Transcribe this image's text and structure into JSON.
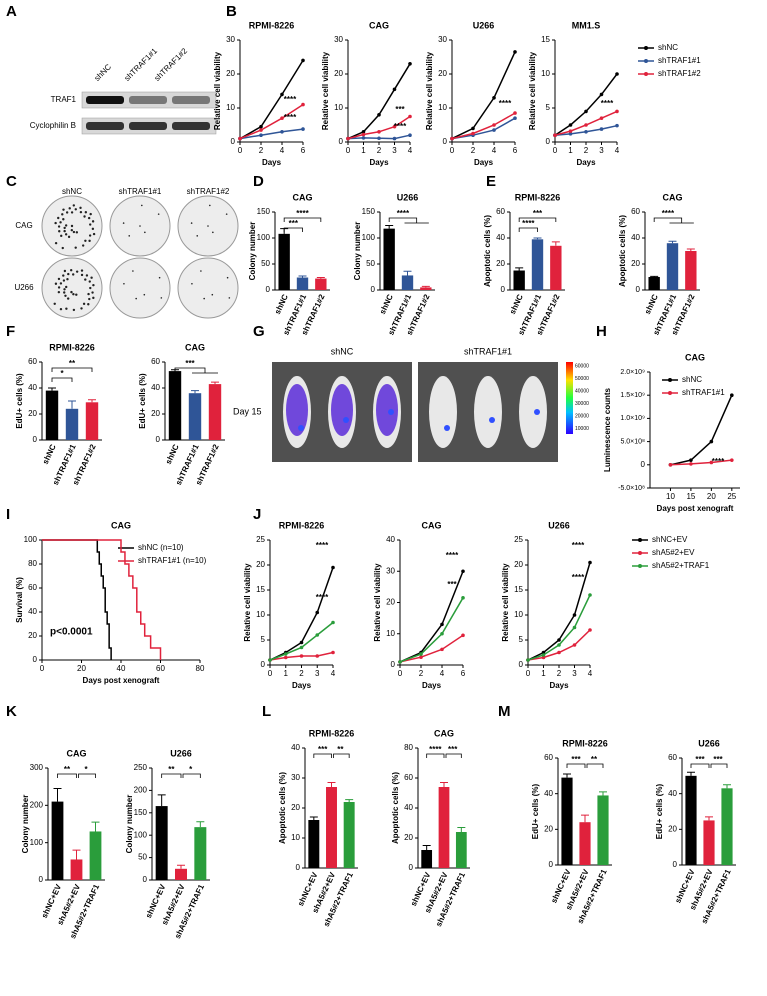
{
  "figure": {
    "letters": [
      "A",
      "B",
      "C",
      "D",
      "E",
      "F",
      "G",
      "H",
      "I",
      "J",
      "K",
      "L",
      "M"
    ],
    "blot": {
      "lanes": [
        "shNC",
        "shTRAF1#1",
        "shTRAF1#2"
      ],
      "rows": [
        "TRAF1",
        "Cyclophilin B"
      ]
    },
    "colony": {
      "columns": [
        "shNC",
        "shTRAF1#1",
        "shTRAF1#2"
      ],
      "rows": [
        "CAG",
        "U266"
      ]
    },
    "imaging": {
      "groups": [
        "shNC",
        "shTRAF1#1"
      ],
      "day": "Day 15",
      "colorbar": [
        60000,
        50000,
        40000,
        30000,
        20000,
        10000
      ]
    }
  },
  "chart_data": [
    {
      "type": "line",
      "title": "RPMI-8226",
      "xlabel": "Days",
      "ylabel": "Relative cell viability",
      "x": [
        0,
        2,
        4,
        6
      ],
      "xlim": [
        0,
        6
      ],
      "xticks": [
        0,
        2,
        4,
        6
      ],
      "ylim": [
        0,
        30
      ],
      "yticks": [
        0,
        10,
        20,
        30
      ],
      "series": [
        {
          "color": "#000000",
          "values": [
            1,
            4.5,
            14,
            24
          ]
        },
        {
          "color": "#2f5597",
          "values": [
            1,
            2,
            3,
            3.8
          ]
        },
        {
          "color": "#e0223c",
          "values": [
            1,
            3.5,
            7,
            11
          ]
        }
      ],
      "annotations": [
        "****",
        "****"
      ]
    },
    {
      "type": "line",
      "title": "CAG",
      "xlabel": "Days",
      "ylabel": "Relative cell viability",
      "x": [
        0,
        1,
        2,
        3,
        4
      ],
      "xlim": [
        0,
        4
      ],
      "xticks": [
        0,
        1,
        2,
        3,
        4
      ],
      "ylim": [
        0,
        30
      ],
      "yticks": [
        0,
        10,
        20,
        30
      ],
      "series": [
        {
          "color": "#000000",
          "values": [
            1,
            3,
            8,
            15.5,
            23
          ]
        },
        {
          "color": "#2f5597",
          "values": [
            1,
            1.2,
            1.1,
            1,
            2
          ]
        },
        {
          "color": "#e0223c",
          "values": [
            1,
            2.2,
            3,
            4.5,
            7.5
          ]
        }
      ],
      "annotations": [
        "***",
        "****"
      ]
    },
    {
      "type": "line",
      "title": "U266",
      "xlabel": "Days",
      "ylabel": "Relative cell viability",
      "x": [
        0,
        2,
        4,
        6
      ],
      "xlim": [
        0,
        6
      ],
      "xticks": [
        0,
        2,
        4,
        6
      ],
      "ylim": [
        0,
        30
      ],
      "yticks": [
        0,
        10,
        20,
        30
      ],
      "series": [
        {
          "color": "#000000",
          "values": [
            1,
            4,
            13,
            26.5
          ]
        },
        {
          "color": "#2f5597",
          "values": [
            1,
            2,
            3.5,
            7
          ]
        },
        {
          "color": "#e0223c",
          "values": [
            1,
            2.5,
            5,
            8.5
          ]
        }
      ],
      "annotations": [
        "****"
      ]
    },
    {
      "type": "line",
      "title": "MM1.S",
      "xlabel": "Days",
      "ylabel": "Relative cell viability",
      "x": [
        0,
        1,
        2,
        3,
        4
      ],
      "xlim": [
        0,
        4
      ],
      "xticks": [
        0,
        1,
        2,
        3,
        4
      ],
      "ylim": [
        0,
        15
      ],
      "yticks": [
        0,
        5,
        10,
        15
      ],
      "series": [
        {
          "name": "shNC",
          "color": "#000000",
          "values": [
            1,
            2.5,
            4.5,
            7,
            10
          ]
        },
        {
          "name": "shTRAF1#1",
          "color": "#2f5597",
          "values": [
            1,
            1.2,
            1.5,
            1.9,
            2.4
          ]
        },
        {
          "name": "shTRAF1#2",
          "color": "#e0223c",
          "values": [
            1,
            1.6,
            2.5,
            3.5,
            4.5
          ]
        }
      ],
      "annotations": [
        "****"
      ]
    },
    {
      "type": "bar",
      "title": "CAG",
      "ylabel": "Colony number",
      "categories": [
        "shNC",
        "shTRAF1#1",
        "shTRAF1#2"
      ],
      "colors": [
        "#000000",
        "#2f5597",
        "#e0223c"
      ],
      "values": [
        108,
        24,
        22
      ],
      "errors": [
        10,
        3,
        2
      ],
      "ylim": [
        0,
        150
      ],
      "yticks": [
        0,
        50,
        100,
        150
      ],
      "annotations": [
        "***",
        "****"
      ]
    },
    {
      "type": "bar",
      "title": "U266",
      "ylabel": "Colony number",
      "categories": [
        "shNC",
        "shTRAF1#1",
        "shTRAF1#2"
      ],
      "colors": [
        "#000000",
        "#2f5597",
        "#e0223c"
      ],
      "values": [
        118,
        28,
        5
      ],
      "errors": [
        6,
        8,
        2
      ],
      "ylim": [
        0,
        150
      ],
      "yticks": [
        0,
        50,
        100,
        150
      ],
      "annotations": [
        "****"
      ]
    },
    {
      "type": "bar",
      "title": "RPMI-8226",
      "ylabel": "Apoptotic cells (%)",
      "categories": [
        "shNC",
        "shTRAF1#1",
        "shTRAF1#2"
      ],
      "colors": [
        "#000000",
        "#2f5597",
        "#e0223c"
      ],
      "values": [
        15,
        39,
        34
      ],
      "errors": [
        2,
        1,
        3
      ],
      "ylim": [
        0,
        60
      ],
      "yticks": [
        0,
        20,
        40,
        60
      ],
      "annotations": [
        "****",
        "***"
      ]
    },
    {
      "type": "bar",
      "title": "CAG",
      "ylabel": "Apoptotic cells (%)",
      "categories": [
        "shNC",
        "shTRAF1#1",
        "shTRAF1#2"
      ],
      "colors": [
        "#000000",
        "#2f5597",
        "#e0223c"
      ],
      "values": [
        10,
        36,
        30
      ],
      "errors": [
        0.5,
        1.5,
        1.5
      ],
      "ylim": [
        0,
        60
      ],
      "yticks": [
        0,
        20,
        40,
        60
      ],
      "annotations": [
        "****"
      ]
    },
    {
      "type": "bar",
      "title": "RPMI-8226",
      "ylabel": "EdU+ cells (%)",
      "categories": [
        "shNC",
        "shTRAF1#1",
        "shTRAF1#2"
      ],
      "colors": [
        "#000000",
        "#2f5597",
        "#e0223c"
      ],
      "values": [
        38,
        24,
        29
      ],
      "errors": [
        2,
        6,
        2
      ],
      "ylim": [
        0,
        60
      ],
      "yticks": [
        0,
        20,
        40,
        60
      ],
      "annotations": [
        "*",
        "**"
      ]
    },
    {
      "type": "bar",
      "title": "CAG",
      "ylabel": "EdU+ cells (%)",
      "categories": [
        "shNC",
        "shTRAF1#1",
        "shTRAF1#2"
      ],
      "colors": [
        "#000000",
        "#2f5597",
        "#e0223c"
      ],
      "values": [
        53,
        36,
        43
      ],
      "errors": [
        1,
        2,
        1.5
      ],
      "ylim": [
        0,
        60
      ],
      "yticks": [
        0,
        20,
        40,
        60
      ],
      "annotations": [
        "***"
      ]
    },
    {
      "type": "line",
      "title": "CAG",
      "xlabel": "Days post xenograft",
      "ylabel": "Luminescence counts",
      "x": [
        10,
        15,
        20,
        25
      ],
      "xlim": [
        5,
        27
      ],
      "xticks": [
        10,
        15,
        20,
        25
      ],
      "ylim": [
        -500000000,
        2000000000
      ],
      "yticks": [
        {
          "value": -500000000,
          "label": "-5.0×10⁸"
        },
        0,
        {
          "value": 500000000,
          "label": "5.0×10⁸"
        },
        {
          "value": 1000000000,
          "label": "1.0×10⁹"
        },
        {
          "value": 1500000000,
          "label": "1.5×10⁹"
        },
        {
          "value": 2000000000,
          "label": "2.0×10⁹"
        }
      ],
      "series": [
        {
          "name": "shNC",
          "color": "#000000",
          "values": [
            0,
            100000000,
            500000000,
            1500000000
          ]
        },
        {
          "name": "shTRAF1#1",
          "color": "#e0223c",
          "values": [
            0,
            20000000,
            50000000,
            100000000
          ]
        }
      ],
      "annotations": [
        "****"
      ]
    },
    {
      "type": "step",
      "title": "CAG",
      "xlabel": "Days post xenograft",
      "ylabel": "Survival (%)",
      "xlim": [
        0,
        80
      ],
      "xticks": [
        0,
        20,
        40,
        60,
        80
      ],
      "ylim": [
        0,
        100
      ],
      "yticks": [
        0,
        20,
        40,
        60,
        80,
        100
      ],
      "series": [
        {
          "name": "shNC (n=10)",
          "color": "#000000",
          "x": [
            0,
            28,
            29,
            30,
            31,
            32,
            33,
            34,
            35
          ],
          "values": [
            100,
            90,
            80,
            70,
            60,
            40,
            30,
            10,
            0
          ]
        },
        {
          "name": "shTRAF1#1 (n=10)",
          "color": "#e0223c",
          "x": [
            0,
            40,
            42,
            44,
            46,
            48,
            50,
            52,
            55,
            60
          ],
          "values": [
            100,
            90,
            80,
            70,
            60,
            40,
            30,
            20,
            10,
            0
          ]
        }
      ],
      "annotations": [
        "p<0.0001"
      ]
    },
    {
      "type": "line",
      "title": "RPMI-8226",
      "xlabel": "Days",
      "ylabel": "Relative cell viability",
      "x": [
        0,
        1,
        2,
        3,
        4
      ],
      "xlim": [
        0,
        4
      ],
      "xticks": [
        0,
        1,
        2,
        3,
        4
      ],
      "ylim": [
        0,
        25
      ],
      "yticks": [
        0,
        5,
        10,
        15,
        20,
        25
      ],
      "series": [
        {
          "color": "#000000",
          "values": [
            1,
            2.5,
            4.5,
            10.5,
            19.5
          ]
        },
        {
          "color": "#e0223c",
          "values": [
            1,
            1.5,
            1.8,
            1.8,
            2.5
          ]
        },
        {
          "color": "#2a9d3b",
          "values": [
            1,
            2.2,
            3.5,
            6,
            8.5
          ]
        }
      ],
      "annotations": [
        "****",
        "****"
      ]
    },
    {
      "type": "line",
      "title": "CAG",
      "xlabel": "Days",
      "ylabel": "Relative cell viability",
      "x": [
        0,
        2,
        4,
        6
      ],
      "xlim": [
        0,
        6
      ],
      "xticks": [
        0,
        2,
        4,
        6
      ],
      "ylim": [
        0,
        40
      ],
      "yticks": [
        0,
        10,
        20,
        30,
        40
      ],
      "series": [
        {
          "color": "#000000",
          "values": [
            1,
            4,
            13,
            30
          ]
        },
        {
          "color": "#e0223c",
          "values": [
            1,
            2.5,
            5,
            9.5
          ]
        },
        {
          "color": "#2a9d3b",
          "values": [
            1,
            3.5,
            10,
            21.5
          ]
        }
      ],
      "annotations": [
        "****",
        "***"
      ]
    },
    {
      "type": "line",
      "title": "U266",
      "xlabel": "Days",
      "ylabel": "Relative cell viability",
      "x": [
        0,
        1,
        2,
        3,
        4
      ],
      "xlim": [
        0,
        4
      ],
      "xticks": [
        0,
        1,
        2,
        3,
        4
      ],
      "ylim": [
        0,
        25
      ],
      "yticks": [
        0,
        5,
        10,
        15,
        20,
        25
      ],
      "series": [
        {
          "name": "shNC+EV",
          "color": "#000000",
          "values": [
            1,
            2.5,
            5,
            10,
            20.5
          ]
        },
        {
          "name": "shA5#2+EV",
          "color": "#e0223c",
          "values": [
            1,
            1.5,
            2.5,
            4,
            7
          ]
        },
        {
          "name": "shA5#2+TRAF1",
          "color": "#2a9d3b",
          "values": [
            1,
            2,
            4,
            7.5,
            14
          ]
        }
      ],
      "annotations": [
        "****",
        "****"
      ]
    },
    {
      "type": "bar",
      "title": "CAG",
      "ylabel": "Colony number",
      "categories": [
        "shNC+EV",
        "shA5#2+EV",
        "shA5#2+TRAF1"
      ],
      "colors": [
        "#000000",
        "#e0223c",
        "#2a9d3b"
      ],
      "values": [
        210,
        55,
        130
      ],
      "errors": [
        35,
        25,
        25
      ],
      "ylim": [
        0,
        300
      ],
      "yticks": [
        0,
        100,
        200,
        300
      ],
      "annotations": [
        "**",
        "*"
      ]
    },
    {
      "type": "bar",
      "title": "U266",
      "ylabel": "Colony number",
      "categories": [
        "shNC+EV",
        "shA5#2+EV",
        "shA5#2+TRAF1"
      ],
      "colors": [
        "#000000",
        "#e0223c",
        "#2a9d3b"
      ],
      "values": [
        165,
        25,
        118
      ],
      "errors": [
        25,
        8,
        12
      ],
      "ylim": [
        0,
        250
      ],
      "yticks": [
        0,
        50,
        100,
        150,
        200,
        250
      ],
      "annotations": [
        "**",
        "*"
      ]
    },
    {
      "type": "bar",
      "title": "RPMI-8226",
      "ylabel": "Apoptotic cells (%)",
      "categories": [
        "shNC+EV",
        "shA5#2+EV",
        "shA5#2+TRAF1"
      ],
      "colors": [
        "#000000",
        "#e0223c",
        "#2a9d3b"
      ],
      "values": [
        16,
        27,
        22
      ],
      "errors": [
        1,
        1.5,
        0.8
      ],
      "ylim": [
        0,
        40
      ],
      "yticks": [
        0,
        10,
        20,
        30,
        40
      ],
      "annotations": [
        "***",
        "**"
      ]
    },
    {
      "type": "bar",
      "title": "CAG",
      "ylabel": "Apoptotic cells (%)",
      "categories": [
        "shNC+EV",
        "shA5#2+EV",
        "shA5#2+TRAF1"
      ],
      "colors": [
        "#000000",
        "#e0223c",
        "#2a9d3b"
      ],
      "values": [
        12,
        54,
        24
      ],
      "errors": [
        3,
        3,
        3
      ],
      "ylim": [
        0,
        80
      ],
      "yticks": [
        0,
        20,
        40,
        60,
        80
      ],
      "annotations": [
        "****",
        "***"
      ]
    },
    {
      "type": "bar",
      "title": "RPMI-8226",
      "ylabel": "EdU+ cells (%)",
      "categories": [
        "shNC+EV",
        "shA5#2+EV",
        "shA5#2+TRAF1"
      ],
      "colors": [
        "#000000",
        "#e0223c",
        "#2a9d3b"
      ],
      "values": [
        49,
        24,
        39
      ],
      "errors": [
        2,
        4,
        2
      ],
      "ylim": [
        0,
        60
      ],
      "yticks": [
        0,
        20,
        40,
        60
      ],
      "annotations": [
        "***",
        "**"
      ]
    },
    {
      "type": "bar",
      "title": "U266",
      "ylabel": "EdU+ cells (%)",
      "categories": [
        "shNC+EV",
        "shA5#2+EV",
        "shA5#2+TRAF1"
      ],
      "colors": [
        "#000000",
        "#e0223c",
        "#2a9d3b"
      ],
      "values": [
        50,
        25,
        43
      ],
      "errors": [
        2,
        2,
        2
      ],
      "ylim": [
        0,
        60
      ],
      "yticks": [
        0,
        20,
        40,
        60
      ],
      "annotations": [
        "***",
        "***"
      ]
    }
  ]
}
